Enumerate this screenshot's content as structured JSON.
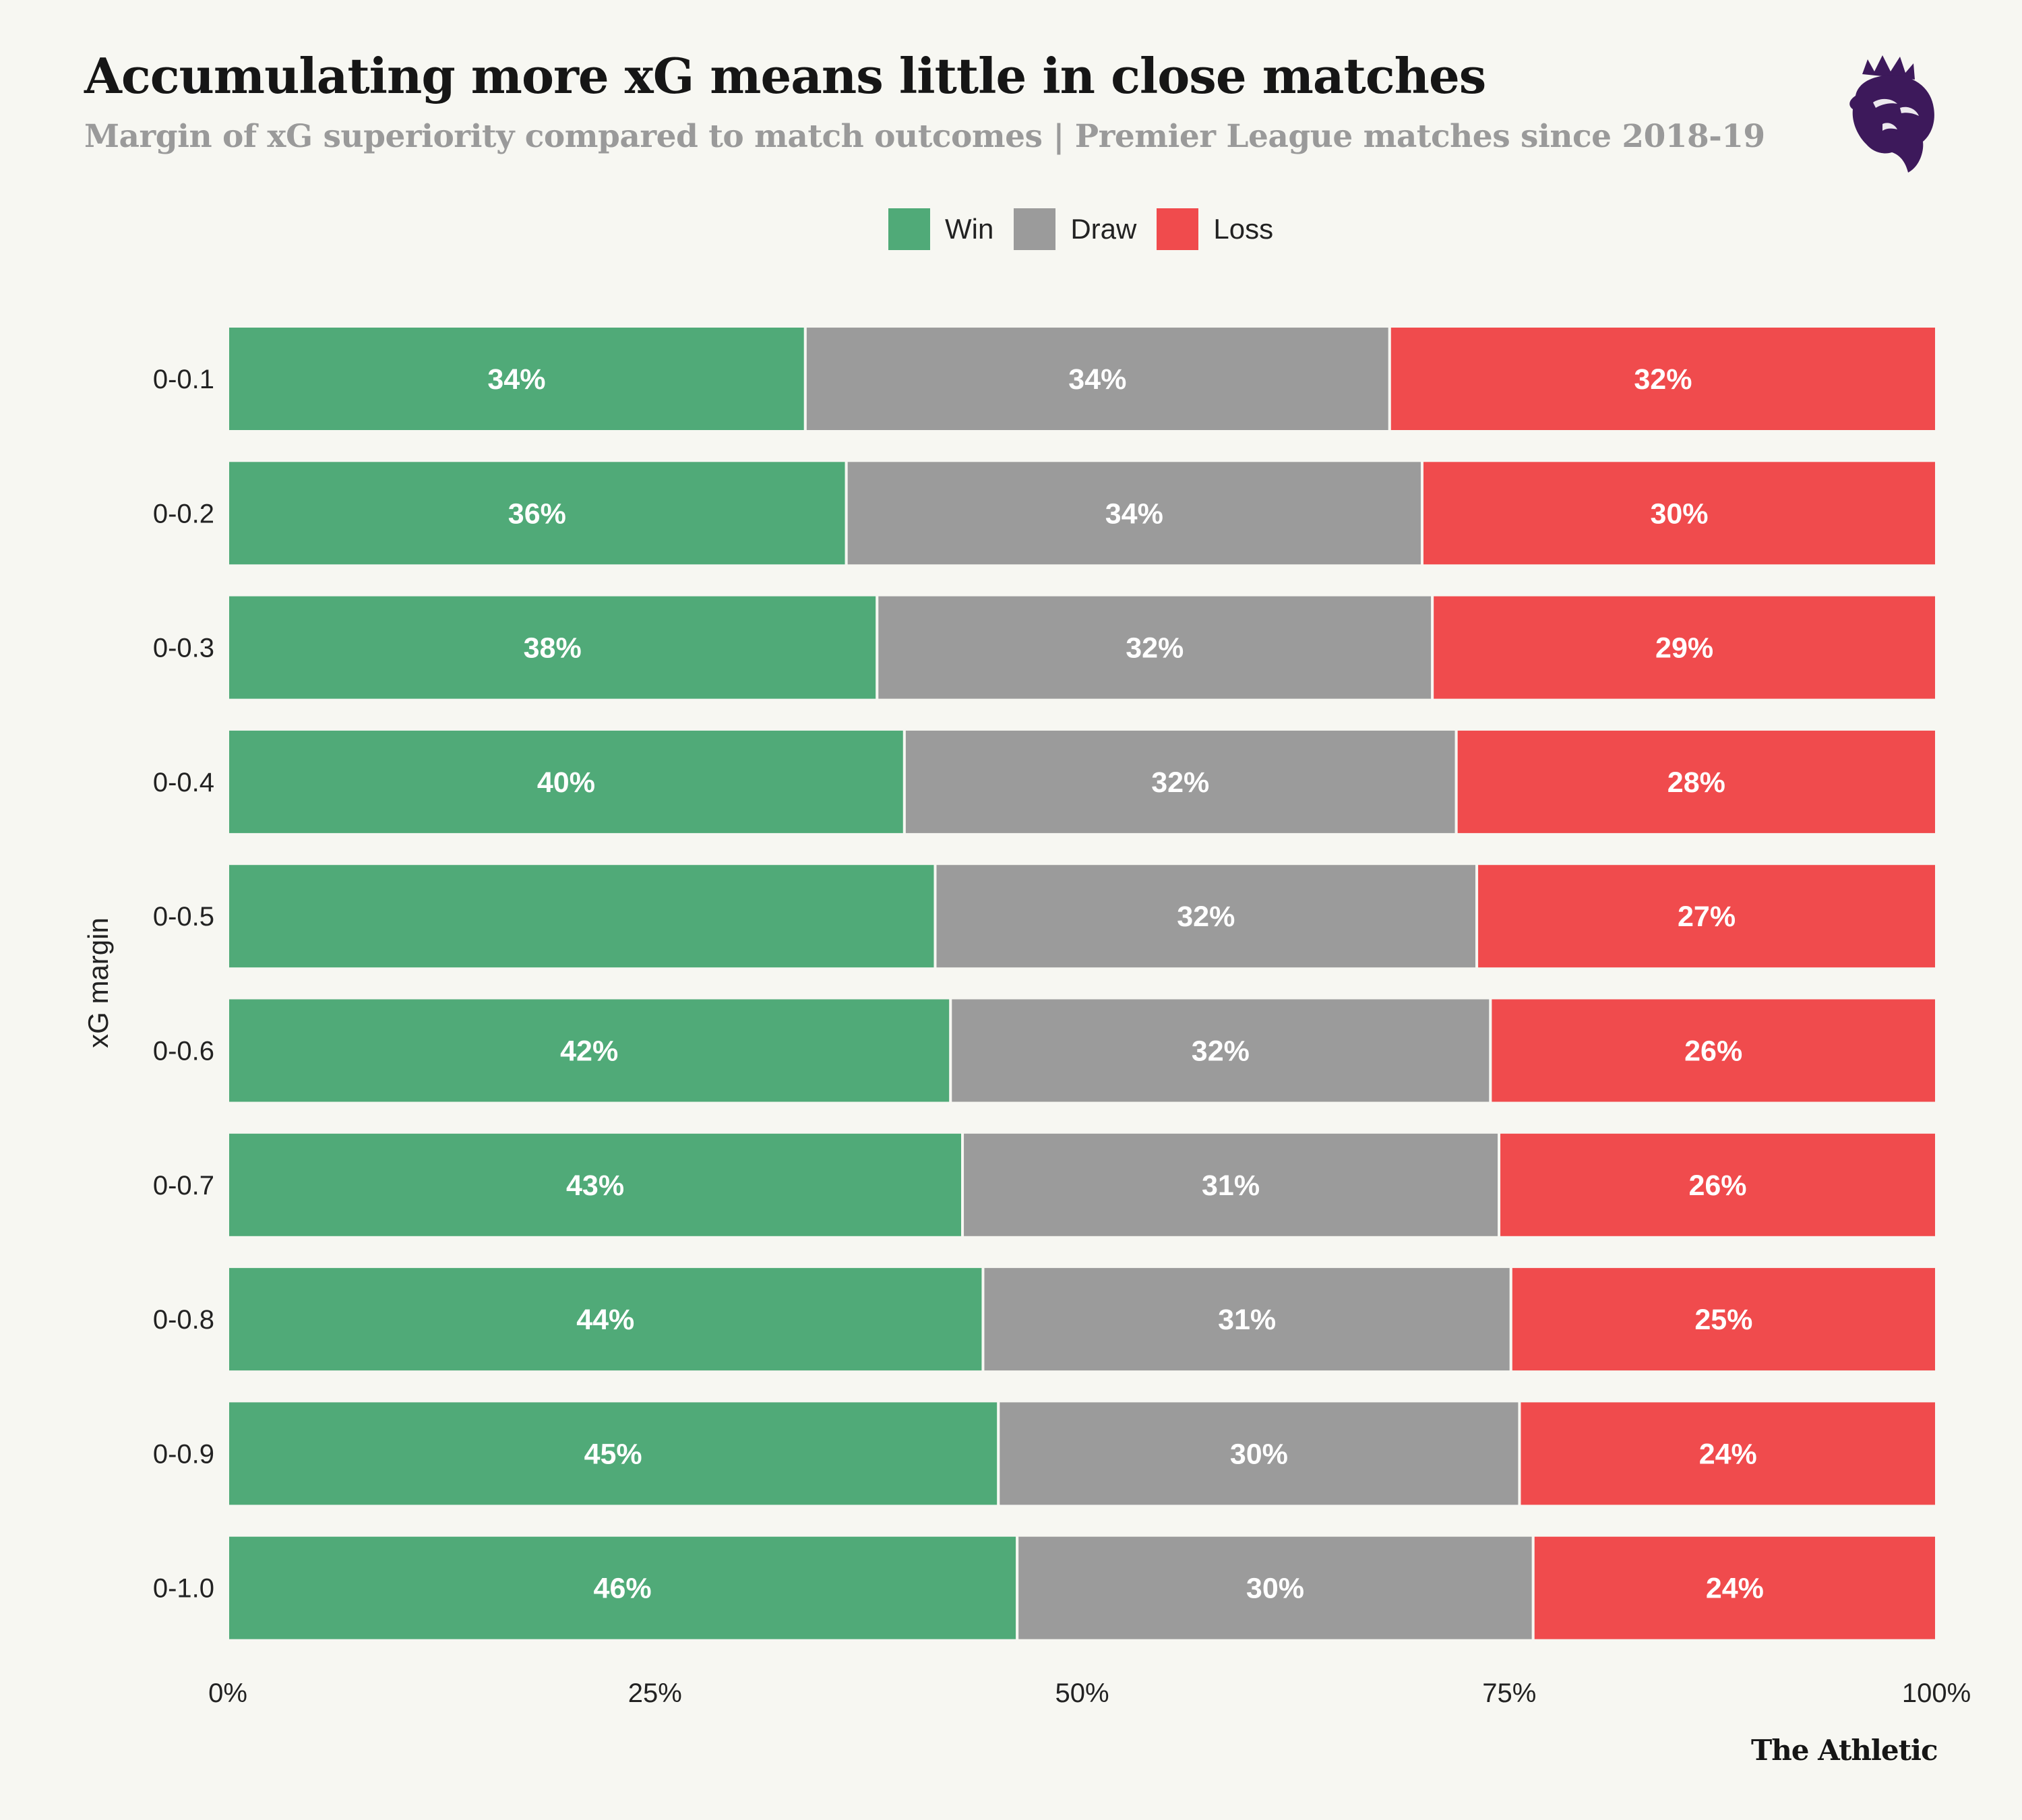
{
  "title": "Accumulating more xG means little in close matches",
  "subtitle": "Margin of xG superiority compared to match outcomes | Premier League matches since 2018-19",
  "brand": "The Athletic",
  "logo_icon": "premier-league-lion-icon",
  "colors": {
    "background": "#f7f7f2",
    "win": "#50aa78",
    "draw": "#9b9b9b",
    "loss": "#f04b4d",
    "logo": "#3d195b"
  },
  "chart_data": {
    "type": "bar",
    "orientation": "horizontal",
    "stacked": true,
    "ylabel": "xG margin",
    "xlabel": "",
    "xlim": [
      0,
      100
    ],
    "x_tick_labels": [
      "0%",
      "25%",
      "50%",
      "75%",
      "100%"
    ],
    "x_ticks": [
      0,
      25,
      50,
      75,
      100
    ],
    "grid": false,
    "legend": "top-center",
    "categories": [
      "0-0.1",
      "0-0.2",
      "0-0.3",
      "0-0.4",
      "0-0.5",
      "0-0.6",
      "0-0.7",
      "0-0.8",
      "0-0.9",
      "0-1.0"
    ],
    "series": [
      {
        "name": "Win",
        "color": "#50aa78",
        "values": [
          33.8,
          36.2,
          38.0,
          39.6,
          41.4,
          42.3,
          43.0,
          44.2,
          45.1,
          46.2
        ],
        "labels": [
          "34%",
          "36%",
          "38%",
          "40%",
          "",
          "42%",
          "43%",
          "44%",
          "45%",
          "46%"
        ]
      },
      {
        "name": "Draw",
        "color": "#9b9b9b",
        "values": [
          34.2,
          33.7,
          32.5,
          32.3,
          31.7,
          31.6,
          31.4,
          30.9,
          30.5,
          30.2
        ],
        "labels": [
          "34%",
          "34%",
          "32%",
          "32%",
          "32%",
          "32%",
          "31%",
          "31%",
          "30%",
          "30%"
        ]
      },
      {
        "name": "Loss",
        "color": "#f04b4d",
        "values": [
          32.0,
          30.1,
          29.5,
          28.1,
          26.9,
          26.1,
          25.6,
          24.9,
          24.4,
          23.6
        ],
        "labels": [
          "32%",
          "30%",
          "29%",
          "28%",
          "27%",
          "26%",
          "26%",
          "25%",
          "24%",
          "24%"
        ]
      }
    ]
  }
}
